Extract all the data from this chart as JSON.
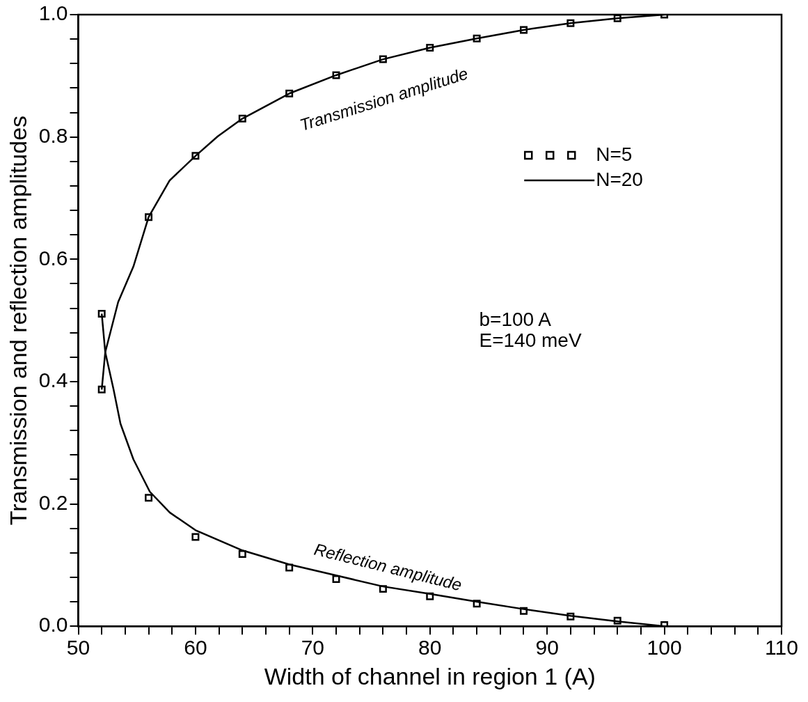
{
  "chart_data": {
    "type": "line",
    "xlabel": "Width of channel in region 1 (A)",
    "ylabel": "Transmission and reflection amplitudes",
    "xlim": [
      50,
      110
    ],
    "xticks": [
      50,
      {
        "value": 52,
        "label": null
      },
      {
        "value": 54,
        "label": null
      },
      {
        "value": 56,
        "label": null
      },
      {
        "value": 58,
        "label": null
      },
      60,
      {
        "value": 62,
        "label": null
      },
      {
        "value": 64,
        "label": null
      },
      {
        "value": 66,
        "label": null
      },
      {
        "value": 68,
        "label": null
      },
      70,
      {
        "value": 72,
        "label": null
      },
      {
        "value": 74,
        "label": null
      },
      {
        "value": 76,
        "label": null
      },
      {
        "value": 78,
        "label": null
      },
      80,
      {
        "value": 82,
        "label": null
      },
      {
        "value": 84,
        "label": null
      },
      {
        "value": 86,
        "label": null
      },
      {
        "value": 88,
        "label": null
      },
      90,
      {
        "value": 92,
        "label": null
      },
      {
        "value": 94,
        "label": null
      },
      {
        "value": 96,
        "label": null
      },
      {
        "value": 98,
        "label": null
      },
      100,
      {
        "value": 102,
        "label": null
      },
      {
        "value": 104,
        "label": null
      },
      {
        "value": 106,
        "label": null
      },
      {
        "value": 108,
        "label": null
      },
      110
    ],
    "ylim": [
      0,
      1
    ],
    "yticks": [
      {
        "value": 0,
        "label": "0.0"
      },
      {
        "value": 0.04,
        "label": null
      },
      {
        "value": 0.08,
        "label": null
      },
      {
        "value": 0.12,
        "label": null
      },
      {
        "value": 0.16,
        "label": null
      },
      0.2,
      {
        "value": 0.24,
        "label": null
      },
      {
        "value": 0.28,
        "label": null
      },
      {
        "value": 0.32,
        "label": null
      },
      {
        "value": 0.36,
        "label": null
      },
      0.4,
      {
        "value": 0.44,
        "label": null
      },
      {
        "value": 0.48,
        "label": null
      },
      {
        "value": 0.52,
        "label": null
      },
      {
        "value": 0.56,
        "label": null
      },
      0.6,
      {
        "value": 0.64,
        "label": null
      },
      {
        "value": 0.68,
        "label": null
      },
      {
        "value": 0.72,
        "label": null
      },
      {
        "value": 0.76,
        "label": null
      },
      0.8,
      {
        "value": 0.84,
        "label": null
      },
      {
        "value": 0.88,
        "label": null
      },
      {
        "value": 0.92,
        "label": null
      },
      {
        "value": 0.96,
        "label": null
      },
      {
        "value": 1,
        "label": "1.0"
      }
    ],
    "grid": false,
    "legend": "top right",
    "line_style": "solid",
    "series": [
      {
        "name": "N=5",
        "type": "scatter",
        "marker": "square",
        "color": "#000000",
        "x": [
          52,
          56,
          60,
          64,
          68,
          72,
          76,
          80,
          84,
          88,
          92,
          96,
          100
        ],
        "values": [
          0.387,
          0.669,
          0.769,
          0.83,
          0.871,
          0.901,
          0.927,
          0.946,
          0.961,
          0.975,
          0.986,
          0.994,
          1.0
        ]
      },
      {
        "type": "scatter",
        "marker": "square",
        "color": "#000000",
        "x": [
          52,
          56,
          60,
          64,
          68,
          72,
          76,
          80,
          84,
          88,
          92,
          96,
          100
        ],
        "values": [
          0.511,
          0.21,
          0.146,
          0.118,
          0.096,
          0.077,
          0.061,
          0.049,
          0.037,
          0.025,
          0.016,
          0.009,
          0.002
        ]
      },
      {
        "name": "N=20",
        "marker": "none",
        "color": "#000000",
        "x": [
          52,
          52.3,
          53.4,
          54.7,
          56,
          57.8,
          60,
          61.9,
          64,
          68,
          72,
          76,
          80,
          84,
          88,
          92,
          96,
          100
        ],
        "values": [
          0.387,
          0.448,
          0.53,
          0.588,
          0.669,
          0.729,
          0.769,
          0.801,
          0.83,
          0.871,
          0.901,
          0.927,
          0.946,
          0.961,
          0.975,
          0.986,
          0.994,
          1.0
        ]
      },
      {
        "marker": "none",
        "color": "#000000",
        "x": [
          52,
          52.3,
          53,
          53.6,
          54.7,
          56.1,
          57.8,
          60,
          64,
          68,
          72,
          76,
          80,
          84,
          88,
          92,
          96,
          100
        ],
        "values": [
          0.511,
          0.448,
          0.388,
          0.331,
          0.273,
          0.22,
          0.186,
          0.157,
          0.124,
          0.101,
          0.083,
          0.065,
          0.053,
          0.04,
          0.028,
          0.017,
          0.008,
          0.0
        ]
      }
    ],
    "annotations": [
      "Transmission amplitude",
      "Reflection amplitude",
      "b=100 A",
      "E=140 meV"
    ]
  }
}
